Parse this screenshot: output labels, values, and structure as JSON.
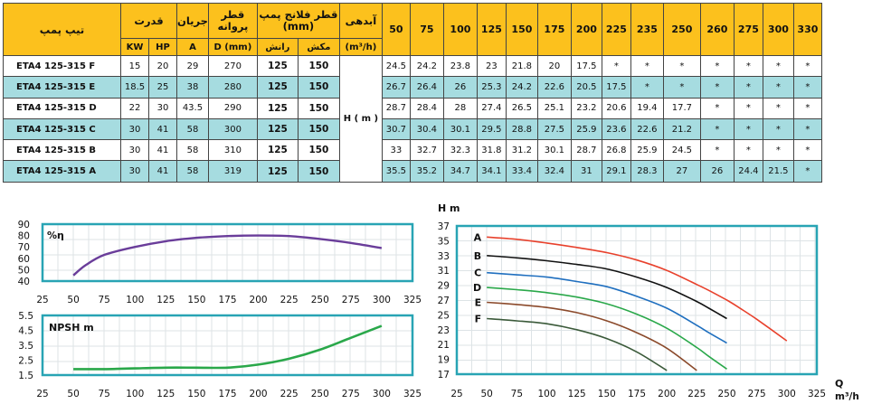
{
  "table": {
    "headers": {
      "model": "تیپ پمپ",
      "power": "قدرت",
      "current": "جریان",
      "impeller": "قطر پروانه",
      "flange": "قطر فلانج پمپ (mm)",
      "flow": "آبدهی",
      "kw": "KW",
      "hp": "HP",
      "amp": "A",
      "dmm": "D (mm)",
      "discharge": "رانش",
      "suction": "مکش",
      "flow_unit": "(m³/h)"
    },
    "flows": [
      "50",
      "75",
      "100",
      "125",
      "150",
      "175",
      "200",
      "225",
      "235",
      "250",
      "260",
      "275",
      "300",
      "330"
    ],
    "head_label": "H ( m )",
    "rows": [
      {
        "model": "ETA4 125-315 F",
        "kw": "15",
        "hp": "20",
        "a": "29",
        "d": "270",
        "disc": "125",
        "suct": "150",
        "heads": [
          "24.5",
          "24.2",
          "23.8",
          "23",
          "21.8",
          "20",
          "17.5",
          "*",
          "*",
          "*",
          "*",
          "*",
          "*",
          "*"
        ]
      },
      {
        "model": "ETA4 125-315 E",
        "kw": "18.5",
        "hp": "25",
        "a": "38",
        "d": "280",
        "disc": "125",
        "suct": "150",
        "heads": [
          "26.7",
          "26.4",
          "26",
          "25.3",
          "24.2",
          "22.6",
          "20.5",
          "17.5",
          "*",
          "*",
          "*",
          "*",
          "*",
          "*"
        ]
      },
      {
        "model": "ETA4 125-315 D",
        "kw": "22",
        "hp": "30",
        "a": "43.5",
        "d": "290",
        "disc": "125",
        "suct": "150",
        "heads": [
          "28.7",
          "28.4",
          "28",
          "27.4",
          "26.5",
          "25.1",
          "23.2",
          "20.6",
          "19.4",
          "17.7",
          "*",
          "*",
          "*",
          "*"
        ]
      },
      {
        "model": "ETA4 125-315 C",
        "kw": "30",
        "hp": "41",
        "a": "58",
        "d": "300",
        "disc": "125",
        "suct": "150",
        "heads": [
          "30.7",
          "30.4",
          "30.1",
          "29.5",
          "28.8",
          "27.5",
          "25.9",
          "23.6",
          "22.6",
          "21.2",
          "*",
          "*",
          "*",
          "*"
        ]
      },
      {
        "model": "ETA4 125-315 B",
        "kw": "30",
        "hp": "41",
        "a": "58",
        "d": "310",
        "disc": "125",
        "suct": "150",
        "heads": [
          "33",
          "32.7",
          "32.3",
          "31.8",
          "31.2",
          "30.1",
          "28.7",
          "26.8",
          "25.9",
          "24.5",
          "*",
          "*",
          "*",
          "*"
        ]
      },
      {
        "model": "ETA4 125-315 A",
        "kw": "30",
        "hp": "41",
        "a": "58",
        "d": "319",
        "disc": "125",
        "suct": "150",
        "heads": [
          "35.5",
          "35.2",
          "34.7",
          "34.1",
          "33.4",
          "32.4",
          "31",
          "29.1",
          "28.3",
          "27",
          "26",
          "24.4",
          "21.5",
          "*"
        ]
      }
    ]
  },
  "chart_data": [
    {
      "type": "line",
      "title": "%η",
      "x_ticks": [
        "25",
        "50",
        "75",
        "100",
        "125",
        "150",
        "175",
        "200",
        "225",
        "250",
        "275",
        "300",
        "325"
      ],
      "y_ticks": [
        "40",
        "50",
        "60",
        "70",
        "80",
        "90"
      ],
      "xlim": [
        25,
        325
      ],
      "ylim": [
        40,
        90
      ],
      "color": "#6a3d9a",
      "x": [
        50,
        60,
        75,
        100,
        125,
        150,
        175,
        200,
        225,
        250,
        275,
        300
      ],
      "y": [
        45,
        54,
        63,
        70,
        75,
        78,
        79.5,
        80,
        79.5,
        77,
        73.5,
        69
      ]
    },
    {
      "type": "line",
      "title": "NPSH m",
      "x_ticks": [
        "25",
        "50",
        "75",
        "100",
        "125",
        "150",
        "175",
        "200",
        "225",
        "250",
        "275",
        "300",
        "325"
      ],
      "y_ticks": [
        "1.5",
        "2.5",
        "3.5",
        "4.5",
        "5.5"
      ],
      "xlim": [
        25,
        325
      ],
      "ylim": [
        1.5,
        5.5
      ],
      "color": "#2aa84a",
      "x": [
        50,
        75,
        100,
        125,
        150,
        175,
        200,
        225,
        250,
        275,
        300
      ],
      "y": [
        1.9,
        1.9,
        1.95,
        2.0,
        2.0,
        2.0,
        2.2,
        2.6,
        3.2,
        4.0,
        4.8
      ]
    },
    {
      "type": "line",
      "ylabel": "H m",
      "xlabel": "Q",
      "xunit": "m³/h",
      "x_ticks": [
        "25",
        "50",
        "75",
        "100",
        "125",
        "150",
        "175",
        "200",
        "225",
        "250",
        "275",
        "300",
        "325"
      ],
      "y_ticks": [
        "17",
        "19",
        "21",
        "23",
        "25",
        "27",
        "29",
        "31",
        "33",
        "35",
        "37"
      ],
      "xlim": [
        25,
        325
      ],
      "ylim": [
        17,
        37
      ],
      "series": [
        {
          "name": "A",
          "color": "#e8412c",
          "x": [
            50,
            75,
            100,
            125,
            150,
            175,
            200,
            225,
            235,
            250,
            260,
            275,
            300
          ],
          "y": [
            35.5,
            35.2,
            34.7,
            34.1,
            33.4,
            32.4,
            31,
            29.1,
            28.3,
            27,
            26,
            24.4,
            21.5
          ]
        },
        {
          "name": "B",
          "color": "#111111",
          "x": [
            50,
            75,
            100,
            125,
            150,
            175,
            200,
            225,
            235,
            250
          ],
          "y": [
            33,
            32.7,
            32.3,
            31.8,
            31.2,
            30.1,
            28.7,
            26.8,
            25.9,
            24.5
          ]
        },
        {
          "name": "C",
          "color": "#1f6fbf",
          "x": [
            50,
            75,
            100,
            125,
            150,
            175,
            200,
            225,
            235,
            250
          ],
          "y": [
            30.7,
            30.4,
            30.1,
            29.5,
            28.8,
            27.5,
            25.9,
            23.6,
            22.6,
            21.2
          ]
        },
        {
          "name": "D",
          "color": "#2aa84a",
          "x": [
            50,
            75,
            100,
            125,
            150,
            175,
            200,
            225,
            235,
            250
          ],
          "y": [
            28.7,
            28.4,
            28,
            27.4,
            26.5,
            25.1,
            23.2,
            20.6,
            19.4,
            17.7
          ]
        },
        {
          "name": "E",
          "color": "#8b4a2b",
          "x": [
            50,
            75,
            100,
            125,
            150,
            175,
            200,
            225
          ],
          "y": [
            26.7,
            26.4,
            26,
            25.3,
            24.2,
            22.6,
            20.5,
            17.5
          ]
        },
        {
          "name": "F",
          "color": "#3b5a3a",
          "x": [
            50,
            75,
            100,
            125,
            150,
            175,
            200
          ],
          "y": [
            24.5,
            24.2,
            23.8,
            23,
            21.8,
            20,
            17.5
          ]
        }
      ]
    }
  ]
}
